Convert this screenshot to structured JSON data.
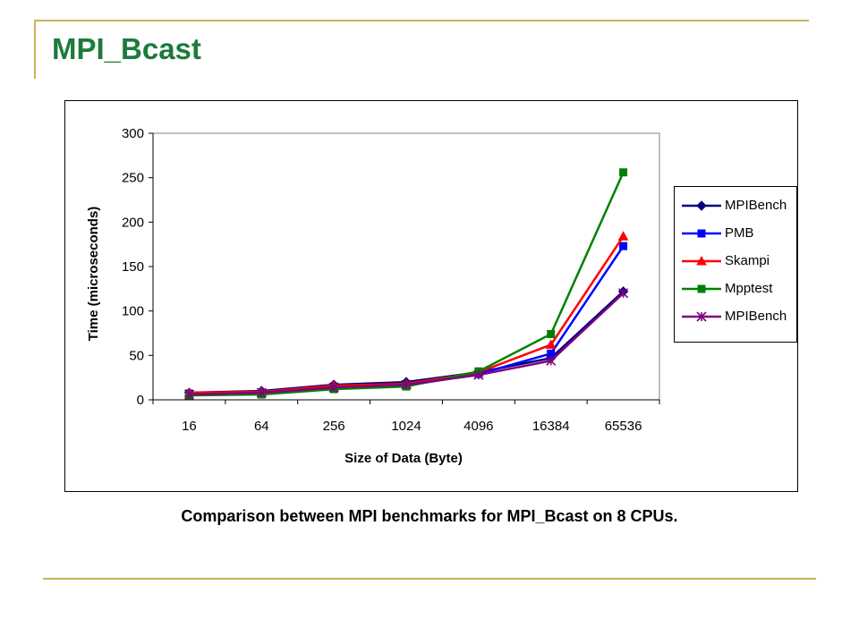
{
  "slide": {
    "title": "MPI_Bcast",
    "caption": "Comparison between MPI benchmarks for MPI_Bcast on 8 CPUs."
  },
  "colors": {
    "title": "#1e7a3c",
    "rule": "#c9b25a"
  },
  "chart_data": {
    "type": "line",
    "xlabel": "Size of Data (Byte)",
    "ylabel": "Time (microseconds)",
    "categories": [
      "16",
      "64",
      "256",
      "1024",
      "4096",
      "16384",
      "65536"
    ],
    "ylim": [
      0,
      300
    ],
    "yticks": [
      "0",
      "50",
      "100",
      "150",
      "200",
      "250",
      "300"
    ],
    "grid": false,
    "legend_position": "right",
    "series": [
      {
        "name": "MPIBench",
        "color": "#000080",
        "marker": "diamond",
        "values": [
          8,
          10,
          17,
          20,
          31,
          47,
          122
        ]
      },
      {
        "name": "PMB",
        "color": "#0000ff",
        "marker": "square",
        "values": [
          7,
          8,
          14,
          16,
          29,
          52,
          173
        ]
      },
      {
        "name": "Skampi",
        "color": "#ff0000",
        "marker": "triangle",
        "values": [
          8,
          9,
          16,
          18,
          31,
          62,
          184
        ]
      },
      {
        "name": "Mpptest",
        "color": "#008000",
        "marker": "square",
        "values": [
          5,
          6,
          12,
          15,
          32,
          74,
          256
        ]
      },
      {
        "name": "MPIBench",
        "color": "#800080",
        "marker": "star",
        "values": [
          6,
          8,
          14,
          17,
          28,
          44,
          120
        ]
      }
    ]
  }
}
